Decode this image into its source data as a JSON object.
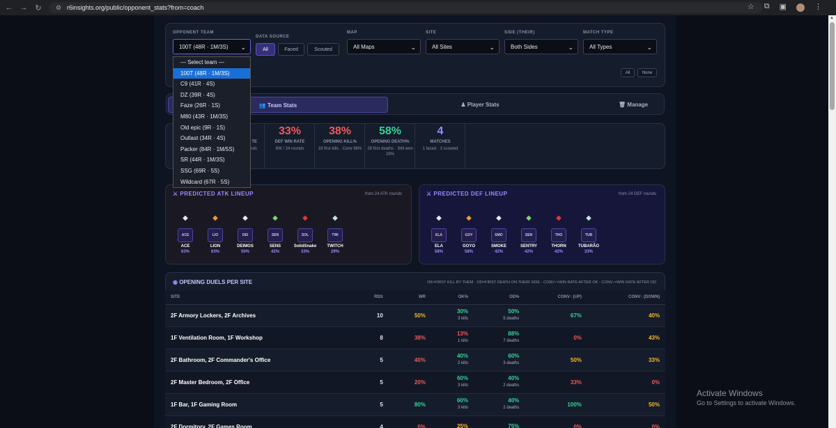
{
  "browser": {
    "url": "r6insights.org/public/opponent_stats?from=coach"
  },
  "filters": {
    "opponent_label": "OPPONENT TEAM",
    "opponent_value": "100T (48R · 1M/3S)",
    "source_label": "DATA SOURCE",
    "source_options": [
      "All",
      "Faced",
      "Scouted"
    ],
    "map_label": "MAP",
    "map_value": "All Maps",
    "site_label": "SITE",
    "site_value": "All Sites",
    "side_label": "SIDE (THEIR)",
    "side_value": "Both Sides",
    "type_label": "MATCH TYPE",
    "type_value": "All Types",
    "all_btn": "All",
    "none_btn": "None"
  },
  "dropdown": [
    "— Select team —",
    "100T (48R · 1M/3S)",
    "C9 (41R · 4S)",
    "DZ (39R · 4S)",
    "Faze (26R · 1S)",
    "M80 (43R · 1M/3S)",
    "Old epic (9R · 1S)",
    "Outlast (34R · 4S)",
    "Packer (84R · 1M/5S)",
    "SR (44R · 1M/3S)",
    "SSG (69R · 5S)",
    "Wildcard (67R · 5S)"
  ],
  "tabs": {
    "team": "Team Stats",
    "player": "Player Stats",
    "manage": "Manage"
  },
  "stats": [
    {
      "partial_label": "TE",
      "partial_sub": "nds"
    },
    {
      "value": "33%",
      "label": "DEF WIN RATE",
      "sub": "8W / 24 rounds",
      "color": "#f05a5a"
    },
    {
      "value": "38%",
      "label": "OPENING KILL%",
      "sub": "18 first kills · Conv 56%",
      "color": "#f05a5a"
    },
    {
      "value": "58%",
      "label": "OPENING DEATH%",
      "sub": "28 first deaths · Still won 29%",
      "color": "#34d399"
    },
    {
      "value": "4",
      "label": "MATCHES",
      "sub": "1 faced · 3 scouted",
      "color": "#9b8cff"
    }
  ],
  "atk": {
    "title": "PREDICTED ATK LINEUP",
    "from": "from 24 ATK rounds",
    "ops": [
      {
        "badge": "ACE",
        "name": "ACE",
        "pct": "63%"
      },
      {
        "badge": "LIO",
        "name": "LION",
        "pct": "63%"
      },
      {
        "badge": "DEI",
        "name": "DEIMOS",
        "pct": "50%"
      },
      {
        "badge": "SEN",
        "name": "SENS",
        "pct": "42%"
      },
      {
        "badge": "SOL",
        "name": "SolidSnake",
        "pct": "33%"
      },
      {
        "badge": "TWI",
        "name": "TWITCH",
        "pct": "29%"
      }
    ]
  },
  "def": {
    "title": "PREDICTED DEF LINEUP",
    "from": "from 24 DEF rounds",
    "ops": [
      {
        "badge": "ELA",
        "name": "ELA",
        "pct": "58%"
      },
      {
        "badge": "GOY",
        "name": "GOYO",
        "pct": "58%"
      },
      {
        "badge": "SMO",
        "name": "SMOKE",
        "pct": "42%"
      },
      {
        "badge": "SEN",
        "name": "SENTRY",
        "pct": "42%"
      },
      {
        "badge": "THO",
        "name": "THORN",
        "pct": "42%"
      },
      {
        "badge": "TUB",
        "name": "TUBARÃO",
        "pct": "33%"
      }
    ]
  },
  "duels": {
    "title": "OPENING DUELS PER SITE",
    "legend": "OK=FIRST KILL BY THEM · OD=FIRST DEATH ON THEIR SIDE · CONV↑=WIN RATE AFTER OK · CONV↓=WIN RATE AFTER OD",
    "headers": [
      "SITE",
      "RDS",
      "WR",
      "OK%",
      "OD%",
      "CONV↑ (UP)",
      "CONV↓ (DOWN)"
    ],
    "rows": [
      {
        "site": "2F Armory Lockers, 2F Archives",
        "rds": "10",
        "wr": "50%",
        "ok": "30%",
        "ok_s": "3 kills",
        "od": "50%",
        "od_s": "5 deaths",
        "up": "67%",
        "down": "40%"
      },
      {
        "site": "1F Ventilation Room, 1F Workshop",
        "rds": "8",
        "wr": "38%",
        "ok": "13%",
        "ok_s": "1 kills",
        "od": "88%",
        "od_s": "7 deaths",
        "up": "0%",
        "down": "43%"
      },
      {
        "site": "2F Bathroom, 2F Commander's Office",
        "rds": "5",
        "wr": "40%",
        "ok": "40%",
        "ok_s": "2 kills",
        "od": "60%",
        "od_s": "3 deaths",
        "up": "50%",
        "down": "33%"
      },
      {
        "site": "2F Master Bedroom, 2F Office",
        "rds": "5",
        "wr": "20%",
        "ok": "60%",
        "ok_s": "3 kills",
        "od": "40%",
        "od_s": "2 deaths",
        "up": "33%",
        "down": "0%"
      },
      {
        "site": "1F Bar, 1F Gaming Room",
        "rds": "5",
        "wr": "80%",
        "ok": "60%",
        "ok_s": "3 kills",
        "od": "40%",
        "od_s": "2 deaths",
        "up": "100%",
        "down": "50%"
      },
      {
        "site": "2F Dormitory, 2F Games Room",
        "rds": "4",
        "wr": "0%",
        "ok": "25%",
        "ok_s": "",
        "od": "75%",
        "od_s": "",
        "up": "0%",
        "down": "0%"
      }
    ]
  },
  "windows": {
    "line1": "Activate Windows",
    "line2": "Go to Settings to activate Windows."
  },
  "colors": {
    "green": "#34d399",
    "red": "#f05a5a",
    "yellow": "#f5b82e",
    "purple": "#9b8cff"
  }
}
